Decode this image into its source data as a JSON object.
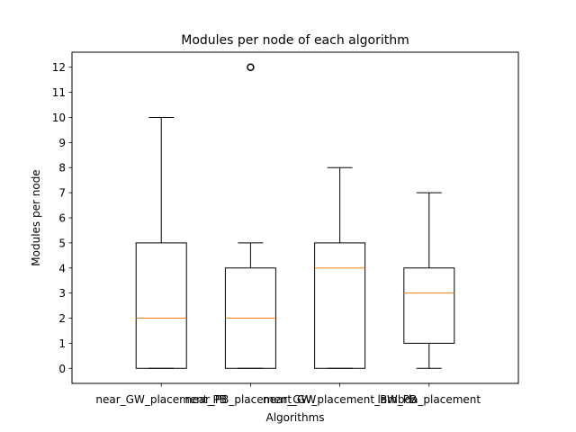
{
  "chart_data": {
    "type": "box",
    "title": "Modules per node of each algorithm",
    "xlabel": "Algorithms",
    "ylabel": "Modules per node",
    "ylim": [
      -0.6,
      12.6
    ],
    "yticks": [
      0,
      1,
      2,
      3,
      4,
      5,
      6,
      7,
      8,
      9,
      10,
      11,
      12
    ],
    "grid": false,
    "categories": [
      "near_GW_placement_PB",
      "near_PB_placement_GW",
      "near_GW_placement_BW_PB",
      "lambda_placement"
    ],
    "boxes": [
      {
        "whisker_low": 0,
        "q1": 0,
        "median": 2,
        "q3": 5,
        "whisker_high": 10,
        "outliers": []
      },
      {
        "whisker_low": 0,
        "q1": 0,
        "median": 2,
        "q3": 4,
        "whisker_high": 5,
        "outliers": [
          12
        ]
      },
      {
        "whisker_low": 0,
        "q1": 0,
        "median": 4,
        "q3": 5,
        "whisker_high": 8,
        "outliers": []
      },
      {
        "whisker_low": 0,
        "q1": 1,
        "median": 3,
        "q3": 4,
        "whisker_high": 7,
        "outliers": []
      }
    ],
    "colors": {
      "box": "#000000",
      "median": "#ff7f0e",
      "outlier": "#000000"
    }
  }
}
